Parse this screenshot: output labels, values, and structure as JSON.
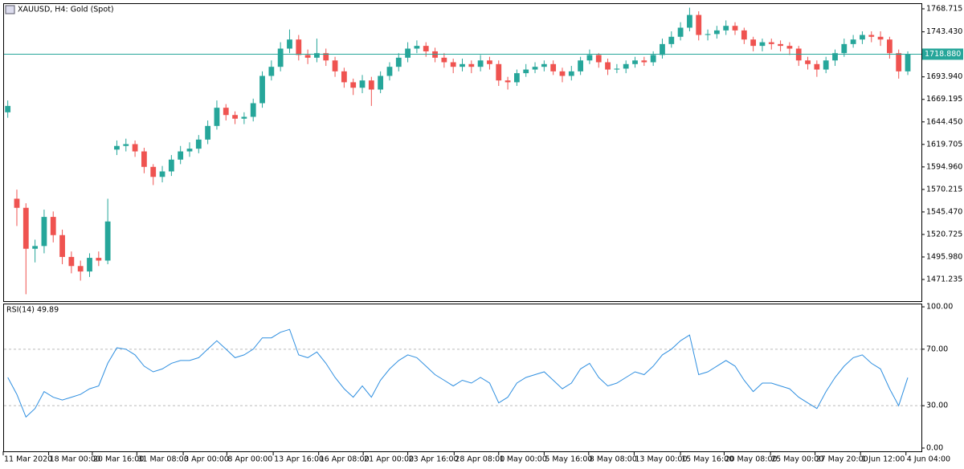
{
  "chart_data": [
    {
      "type": "candlestick",
      "title": "XAUUSD, H4:  Gold (Spot)",
      "open": [
        1655,
        1560,
        1550,
        1505,
        1508,
        1540,
        1520,
        1496,
        1486,
        1480,
        1495,
        1492,
        1614,
        1618,
        1620,
        1612,
        1595,
        1584,
        1590,
        1603,
        1612,
        1615,
        1625,
        1640,
        1660,
        1652,
        1648,
        1650,
        1665,
        1695,
        1705,
        1725,
        1735,
        1718,
        1715,
        1720,
        1712,
        1700,
        1688,
        1682,
        1690,
        1680,
        1695,
        1705,
        1715,
        1725,
        1728,
        1722,
        1715,
        1710,
        1705,
        1708,
        1705,
        1712,
        1708,
        1690,
        1688,
        1698,
        1702,
        1705,
        1708,
        1700,
        1695,
        1700,
        1712,
        1718,
        1710,
        1702,
        1703,
        1708,
        1712,
        1710,
        1718,
        1730,
        1738,
        1748,
        1762,
        1740,
        1741,
        1745,
        1750,
        1745,
        1735,
        1728,
        1732,
        1730,
        1728,
        1725,
        1712,
        1708,
        1702,
        1712,
        1720,
        1730,
        1735,
        1740,
        1738,
        1735,
        1720,
        1700
      ],
      "high": [
        1668,
        1570,
        1555,
        1515,
        1548,
        1546,
        1526,
        1502,
        1492,
        1500,
        1502,
        1560,
        1624,
        1626,
        1624,
        1616,
        1598,
        1596,
        1608,
        1618,
        1622,
        1630,
        1646,
        1668,
        1664,
        1656,
        1655,
        1670,
        1700,
        1712,
        1732,
        1746,
        1740,
        1724,
        1736,
        1725,
        1716,
        1704,
        1692,
        1696,
        1694,
        1700,
        1710,
        1720,
        1732,
        1734,
        1732,
        1726,
        1720,
        1714,
        1714,
        1712,
        1718,
        1716,
        1712,
        1694,
        1702,
        1708,
        1710,
        1712,
        1712,
        1704,
        1706,
        1716,
        1724,
        1720,
        1714,
        1708,
        1712,
        1716,
        1716,
        1722,
        1736,
        1744,
        1754,
        1770,
        1766,
        1746,
        1750,
        1756,
        1754,
        1748,
        1738,
        1736,
        1736,
        1734,
        1732,
        1728,
        1716,
        1712,
        1716,
        1724,
        1736,
        1740,
        1744,
        1744,
        1744,
        1738,
        1724,
        1722
      ],
      "low": [
        1649,
        1530,
        1455,
        1490,
        1500,
        1512,
        1488,
        1478,
        1470,
        1474,
        1486,
        1488,
        1608,
        1612,
        1606,
        1588,
        1575,
        1578,
        1585,
        1598,
        1606,
        1610,
        1620,
        1636,
        1646,
        1642,
        1642,
        1645,
        1660,
        1690,
        1700,
        1720,
        1712,
        1708,
        1710,
        1706,
        1694,
        1682,
        1674,
        1676,
        1662,
        1676,
        1690,
        1700,
        1710,
        1720,
        1716,
        1710,
        1704,
        1698,
        1700,
        1698,
        1700,
        1702,
        1684,
        1680,
        1684,
        1694,
        1698,
        1700,
        1696,
        1688,
        1690,
        1696,
        1708,
        1704,
        1696,
        1698,
        1698,
        1704,
        1706,
        1706,
        1714,
        1726,
        1734,
        1744,
        1734,
        1734,
        1736,
        1740,
        1740,
        1730,
        1722,
        1722,
        1724,
        1722,
        1718,
        1706,
        1702,
        1694,
        1698,
        1706,
        1716,
        1726,
        1730,
        1732,
        1728,
        1714,
        1692,
        1696
      ],
      "close": [
        1662,
        1550,
        1505,
        1508,
        1540,
        1520,
        1496,
        1486,
        1480,
        1495,
        1492,
        1535,
        1618,
        1620,
        1612,
        1595,
        1584,
        1590,
        1603,
        1612,
        1615,
        1625,
        1640,
        1660,
        1652,
        1648,
        1650,
        1665,
        1695,
        1705,
        1725,
        1735,
        1718,
        1715,
        1720,
        1712,
        1700,
        1688,
        1682,
        1690,
        1680,
        1695,
        1705,
        1715,
        1725,
        1728,
        1722,
        1715,
        1710,
        1705,
        1708,
        1705,
        1712,
        1708,
        1690,
        1688,
        1698,
        1702,
        1705,
        1708,
        1700,
        1695,
        1700,
        1712,
        1718,
        1710,
        1702,
        1703,
        1708,
        1712,
        1710,
        1718,
        1730,
        1738,
        1748,
        1762,
        1740,
        1741,
        1745,
        1750,
        1745,
        1735,
        1728,
        1732,
        1730,
        1728,
        1725,
        1712,
        1708,
        1702,
        1712,
        1720,
        1730,
        1735,
        1740,
        1738,
        1735,
        1720,
        1700,
        1719
      ],
      "up_color": "#26a69a",
      "down_color": "#ef5350",
      "xlim": [
        -0.5,
        100.5
      ],
      "ylim": [
        1447.4,
        1774.9
      ],
      "yticks": [
        1768.715,
        {
          "value": 1743.43,
          "label": "1743.430"
        },
        {
          "value": 1693.94,
          "label": "1693.940"
        },
        1669.195,
        {
          "value": 1644.45,
          "label": "1644.450"
        },
        1619.705,
        {
          "value": 1594.96,
          "label": "1594.960"
        },
        1570.215,
        {
          "value": 1545.47,
          "label": "1545.470"
        },
        1520.725,
        {
          "value": 1495.98,
          "label": "1495.980"
        },
        1471.235
      ],
      "last_price": {
        "value": 1718.88,
        "label": "1718.880"
      },
      "price_line_color": "#26a69a"
    },
    {
      "type": "line",
      "title": "RSI(14) 49.89",
      "color": "#2f8fe0",
      "values": [
        50,
        38,
        22,
        28,
        40,
        36,
        34,
        36,
        38,
        42,
        44,
        60,
        71,
        70,
        66,
        58,
        54,
        56,
        60,
        62,
        62,
        64,
        70,
        76,
        70,
        64,
        66,
        70,
        78,
        78,
        82,
        84,
        66,
        64,
        68,
        60,
        50,
        42,
        36,
        44,
        36,
        48,
        56,
        62,
        66,
        64,
        58,
        52,
        48,
        44,
        48,
        46,
        50,
        46,
        32,
        36,
        46,
        50,
        52,
        54,
        48,
        42,
        46,
        56,
        60,
        50,
        44,
        46,
        50,
        54,
        52,
        58,
        66,
        70,
        76,
        80,
        52,
        54,
        58,
        62,
        58,
        48,
        40,
        46,
        46,
        44,
        42,
        36,
        32,
        28,
        40,
        50,
        58,
        64,
        66,
        60,
        56,
        42,
        30,
        49.89
      ],
      "xlim": [
        -0.5,
        100.5
      ],
      "ylim": [
        -2.3,
        102.3
      ],
      "yticks": [
        {
          "value": 100,
          "label": "100.00"
        },
        {
          "value": 70,
          "label": "70.00"
        },
        {
          "value": 30,
          "label": "30.00"
        },
        {
          "value": 0,
          "label": "0.00"
        }
      ],
      "levels": [
        70,
        30
      ],
      "xticks": [
        {
          "value": -0.5,
          "label": "11 Mar 2020"
        },
        {
          "value": 4.5,
          "label": "18 Mar 00:00"
        },
        {
          "value": 9.3,
          "label": "20 Mar 16:00"
        },
        {
          "value": 14.2,
          "label": "31 Mar 08:00"
        },
        {
          "value": 19.3,
          "label": "3 Apr 00:00"
        },
        {
          "value": 24.1,
          "label": "8 Apr 00:00"
        },
        {
          "value": 29.2,
          "label": "13 Apr 16:00"
        },
        {
          "value": 34.2,
          "label": "16 Apr 08:00"
        },
        {
          "value": 39.1,
          "label": "21 Apr 00:00"
        },
        {
          "value": 44,
          "label": "23 Apr 16:00"
        },
        {
          "value": 49.1,
          "label": "28 Apr 08:00"
        },
        {
          "value": 54,
          "label": "1 May 00:00"
        },
        {
          "value": 59,
          "label": "5 May 16:00"
        },
        {
          "value": 63.9,
          "label": "8 May 08:00"
        },
        {
          "value": 68.9,
          "label": "13 May 00:00"
        },
        {
          "value": 74,
          "label": "15 May 16:00"
        },
        {
          "value": 78.8,
          "label": "20 May 08:00"
        },
        {
          "value": 83.9,
          "label": "25 May 00:00"
        },
        {
          "value": 88.8,
          "label": "27 May 20:00"
        },
        {
          "value": 93.8,
          "label": "1 Jun 12:00"
        },
        {
          "value": 98.8,
          "label": "4 Jun 04:00"
        }
      ]
    }
  ]
}
